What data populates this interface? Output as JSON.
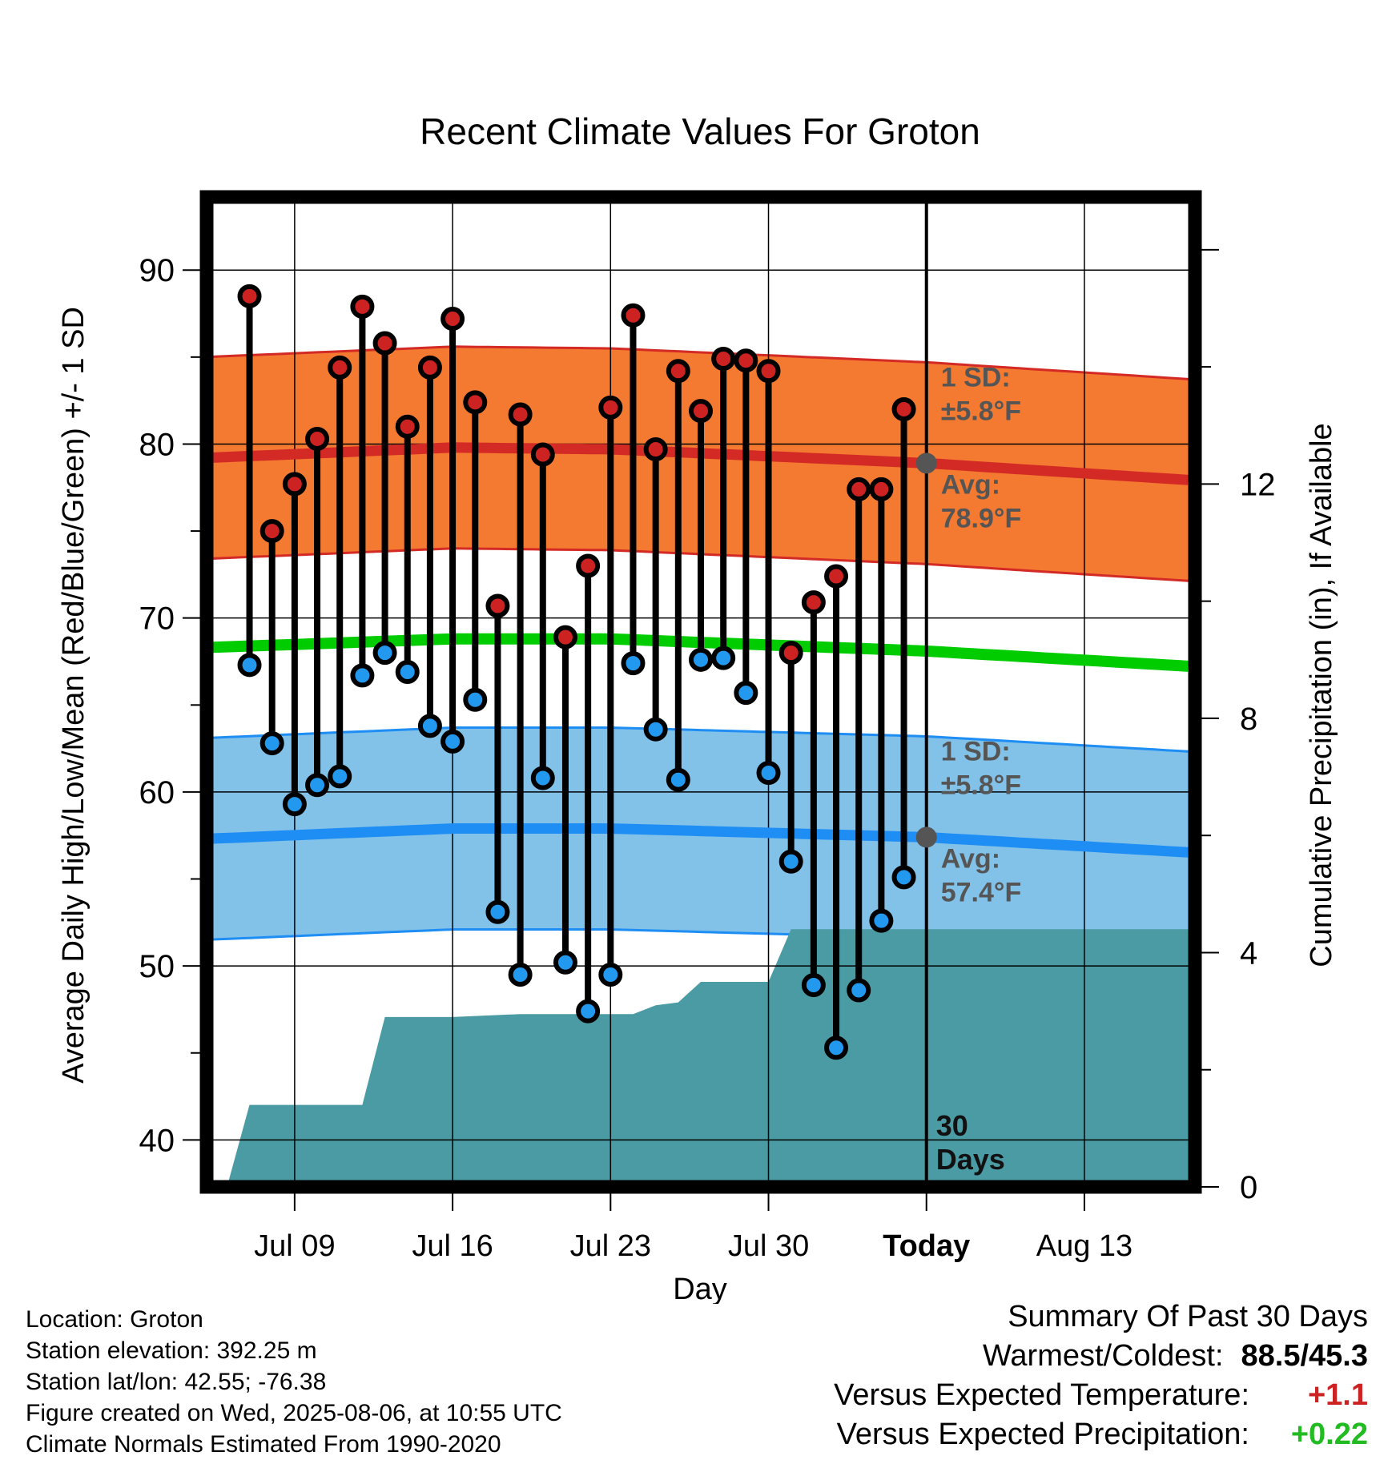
{
  "chart_data": {
    "type": "line",
    "title": "Recent Climate Values For Groton",
    "xlabel": "Day",
    "ylabel_left": "Average Daily High/Low/Mean (Red/Blue/Green) +/- 1 SD",
    "ylabel_right": "Cumulative Precipitation (in), If Available",
    "x_day_range": [
      -31.9,
      11.9
    ],
    "ylim_left": [
      37.3,
      94.2
    ],
    "ylim_right": [
      0,
      16.9
    ],
    "left_ticks": [
      40,
      50,
      60,
      70,
      80,
      90
    ],
    "left_tick_labels": [
      "40",
      "50",
      "60",
      "70",
      "80",
      "90"
    ],
    "right_ticks": [
      0,
      4,
      8,
      12
    ],
    "right_tick_labels": [
      "0",
      "4",
      "8",
      "12"
    ],
    "x_ticks": [
      {
        "day": -28,
        "label": "Jul 09"
      },
      {
        "day": -21,
        "label": "Jul 16"
      },
      {
        "day": -14,
        "label": "Jul 23"
      },
      {
        "day": -7,
        "label": "Jul 30"
      },
      {
        "day": 0,
        "label": "Today"
      },
      {
        "day": 7,
        "label": "Aug 13"
      }
    ],
    "grid": true,
    "observations": {
      "days": [
        -30,
        -29,
        -28,
        -27,
        -26,
        -25,
        -24,
        -23,
        -22,
        -21,
        -20,
        -19,
        -18,
        -17,
        -16,
        -15,
        -14,
        -13,
        -12,
        -11,
        -10,
        -9,
        -8,
        -7,
        -6,
        -5,
        -4,
        -3,
        -2,
        -1
      ],
      "high": [
        88.5,
        75.0,
        77.7,
        80.3,
        84.4,
        87.9,
        85.8,
        81.0,
        84.4,
        87.2,
        82.4,
        70.7,
        81.7,
        79.4,
        68.9,
        73.0,
        82.1,
        87.4,
        79.7,
        84.2,
        81.9,
        84.9,
        84.8,
        84.2,
        68.0,
        70.9,
        72.4,
        77.4,
        77.4,
        82.0
      ],
      "low": [
        67.3,
        62.8,
        59.3,
        60.4,
        60.9,
        66.7,
        68.0,
        66.9,
        63.8,
        62.9,
        65.3,
        53.1,
        49.5,
        60.8,
        50.2,
        47.4,
        49.5,
        67.4,
        63.6,
        60.7,
        67.6,
        67.7,
        65.7,
        61.1,
        56.0,
        48.9,
        45.3,
        48.6,
        52.6,
        55.1
      ]
    },
    "normals": {
      "days": [
        -32,
        -21,
        -14,
        0,
        12
      ],
      "high_avg": [
        79.2,
        79.8,
        79.7,
        78.9,
        77.9
      ],
      "low_avg": [
        57.3,
        57.9,
        57.9,
        57.4,
        56.5
      ],
      "mean_avg": [
        68.3,
        68.8,
        68.8,
        68.1,
        67.2
      ]
    },
    "sd": 5.8,
    "precipitation": {
      "days": [
        -32,
        -31,
        -30,
        -25,
        -24,
        -21,
        -18,
        -14,
        -13,
        -12,
        -11,
        -10,
        -8,
        -7,
        -6,
        0,
        11.9
      ],
      "cumulative": [
        0,
        0,
        1.4,
        1.4,
        2.9,
        2.9,
        2.95,
        2.95,
        2.95,
        3.1,
        3.15,
        3.5,
        3.5,
        3.5,
        4.4,
        4.4,
        4.4
      ]
    },
    "annotations": {
      "high_sd_title": "1 SD:",
      "high_sd_value": "±5.8°F",
      "high_avg_title": "Avg:",
      "high_avg_value": "78.9°F",
      "low_sd_title": "1 SD:",
      "low_sd_value": "±5.8°F",
      "low_avg_title": "Avg:",
      "low_avg_value": "57.4°F",
      "today_line1": "30",
      "today_line2": "Days"
    },
    "colors": {
      "high_band": "#f37a30",
      "high_line": "#d42a26",
      "low_band": "#82c1e8",
      "low_line": "#1e8ef5",
      "mean_line": "#00cc00",
      "precip": "#4a9ba3",
      "marker_high": "#cc2222",
      "marker_low": "#2299ee",
      "annotation": "#555555"
    }
  },
  "metadata": {
    "location": "Location: Groton",
    "elevation": "Station elevation: 392.25 m",
    "latlon": "Station lat/lon: 42.55; -76.38",
    "created": "Figure created on Wed, 2025-08-06, at 10:55 UTC",
    "normals": "Climate Normals Estimated From 1990-2020"
  },
  "summary": {
    "title": "Summary Of Past 30 Days",
    "warmest_label": "Warmest/Coldest:",
    "warmest_value": "88.5/45.3",
    "temp_label": "Versus Expected Temperature:",
    "temp_value": "+1.1",
    "temp_color": "#cc2222",
    "precip_label": "Versus Expected Precipitation:",
    "precip_value": "+0.22",
    "precip_color": "#22bb22"
  }
}
